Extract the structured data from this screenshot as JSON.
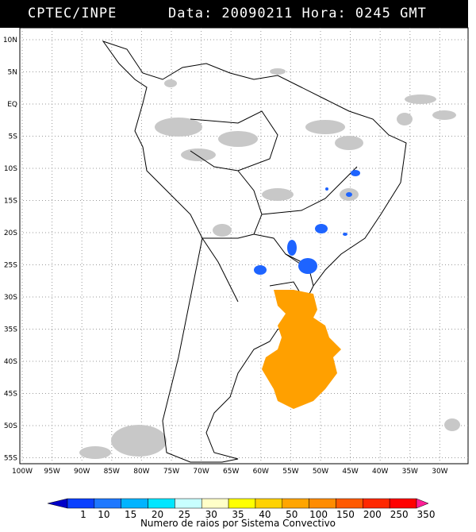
{
  "header": {
    "source": "CPTEC/INPE",
    "timestamp": "Data: 20090211 Hora: 0245 GMT"
  },
  "map": {
    "lat_labels": [
      "10N",
      "5N",
      "EQ",
      "5S",
      "10S",
      "15S",
      "20S",
      "25S",
      "30S",
      "35S",
      "40S",
      "45S",
      "50S",
      "55S"
    ],
    "lon_labels": [
      "100W",
      "95W",
      "90W",
      "85W",
      "80W",
      "75W",
      "70W",
      "65W",
      "60W",
      "55W",
      "50W",
      "45W",
      "40W",
      "35W",
      "30W"
    ],
    "colors": {
      "land_border": "#000000",
      "cloud_gray": "#c8c8c8",
      "blue_cell": "#1e64ff",
      "orange_system": "#ffa000",
      "grid": "#9a9a9a"
    }
  },
  "colorbar": {
    "ticks": [
      "1",
      "10",
      "15",
      "20",
      "25",
      "30",
      "35",
      "40",
      "50",
      "100",
      "150",
      "200",
      "250",
      "350"
    ],
    "colors": [
      "#0000c8",
      "#0a40ff",
      "#1e78ff",
      "#00b4ff",
      "#00e6ff",
      "#c8ffff",
      "#ffffc8",
      "#ffff00",
      "#ffd200",
      "#ffa500",
      "#ff8c00",
      "#ff5a00",
      "#ff2800",
      "#ff0000",
      "#ff1e96"
    ],
    "label": "Numero de raios por Sistema Convectivo"
  }
}
